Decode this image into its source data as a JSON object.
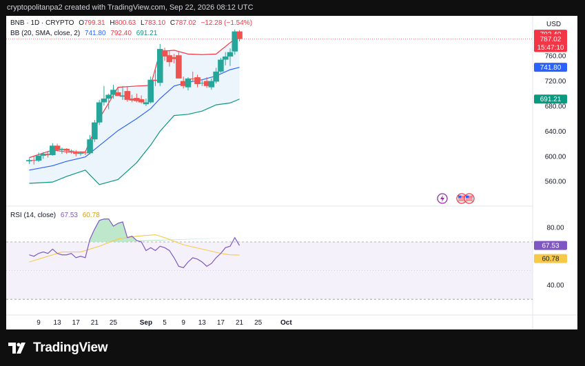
{
  "header": "cryptopolitanpa2 created with TradingView.com, Sep 22, 2026 08:12 UTC",
  "currency": "USD",
  "legend": {
    "symbol": "BNB · 1D · CRYPTO",
    "o_label": "O",
    "o": "799.31",
    "h_label": "H",
    "h": "800.63",
    "l_label": "L",
    "l": "783.10",
    "c_label": "C",
    "c": "787.02",
    "change": "−12.28 (−1.54%)",
    "bb_label": "BB (20, SMA, close, 2)",
    "bb_basis": "741.80",
    "bb_upper": "792.40",
    "bb_lower": "691.21",
    "rsi_label": "RSI (14, close)",
    "rsi": "67.53",
    "rsi_ma": "60.78"
  },
  "price_badges": {
    "upper": "792.40",
    "last": "787.02",
    "countdown": "15:47:10",
    "basis": "741.80",
    "lower": "691.21",
    "rsi": "67.53",
    "rsi_ma": "60.78"
  },
  "brand": "TradingView",
  "colors": {
    "up": "#26a69a",
    "down": "#ef5350",
    "bb_basis": "#2962ff",
    "bb_upper": "#f23645",
    "bb_lower": "#089981",
    "bb_fill": "#eaf3fc",
    "rsi": "#7e57c2",
    "rsi_ma": "#f7c948",
    "rsi_band": "#ede7f6"
  },
  "chart_data": [
    {
      "type": "candlestick",
      "title": "BNB · 1D · CRYPTO",
      "ylabel": "USD",
      "ylim": [
        535,
        815
      ],
      "y_ticks": [
        "560.00",
        "600.00",
        "640.00",
        "680.00",
        "720.00",
        "760.00"
      ],
      "x_ticks": [
        "9",
        "13",
        "17",
        "21",
        "25",
        "Sep",
        "5",
        "9",
        "13",
        "17",
        "21",
        "25",
        "Oct"
      ],
      "x_tick_days": [
        9,
        13,
        17,
        21,
        25,
        32,
        36,
        40,
        44,
        48,
        52,
        56,
        62
      ],
      "candles": [
        {
          "d": 7,
          "o": 592,
          "h": 597,
          "l": 588,
          "c": 594
        },
        {
          "d": 8,
          "o": 594,
          "h": 600,
          "l": 587,
          "c": 593
        },
        {
          "d": 9,
          "o": 593,
          "h": 606,
          "l": 591,
          "c": 601
        },
        {
          "d": 10,
          "o": 601,
          "h": 607,
          "l": 596,
          "c": 604
        },
        {
          "d": 11,
          "o": 604,
          "h": 607,
          "l": 598,
          "c": 602
        },
        {
          "d": 12,
          "o": 602,
          "h": 621,
          "l": 601,
          "c": 617
        },
        {
          "d": 13,
          "o": 617,
          "h": 620,
          "l": 608,
          "c": 610
        },
        {
          "d": 14,
          "o": 610,
          "h": 614,
          "l": 604,
          "c": 612
        },
        {
          "d": 15,
          "o": 612,
          "h": 613,
          "l": 604,
          "c": 609
        },
        {
          "d": 16,
          "o": 609,
          "h": 611,
          "l": 604,
          "c": 609
        },
        {
          "d": 17,
          "o": 606,
          "h": 610,
          "l": 600,
          "c": 604
        },
        {
          "d": 18,
          "o": 604,
          "h": 608,
          "l": 601,
          "c": 606
        },
        {
          "d": 19,
          "o": 606,
          "h": 609,
          "l": 602,
          "c": 605
        },
        {
          "d": 20,
          "o": 605,
          "h": 634,
          "l": 603,
          "c": 627
        },
        {
          "d": 21,
          "o": 627,
          "h": 658,
          "l": 623,
          "c": 654
        },
        {
          "d": 22,
          "o": 654,
          "h": 690,
          "l": 650,
          "c": 686
        },
        {
          "d": 23,
          "o": 686,
          "h": 712,
          "l": 681,
          "c": 692
        },
        {
          "d": 24,
          "o": 692,
          "h": 700,
          "l": 675,
          "c": 698
        },
        {
          "d": 25,
          "o": 698,
          "h": 714,
          "l": 692,
          "c": 706
        },
        {
          "d": 26,
          "o": 702,
          "h": 710,
          "l": 696,
          "c": 696
        },
        {
          "d": 27,
          "o": 695,
          "h": 712,
          "l": 690,
          "c": 697
        },
        {
          "d": 28,
          "o": 704,
          "h": 711,
          "l": 687,
          "c": 690
        },
        {
          "d": 29,
          "o": 692,
          "h": 698,
          "l": 686,
          "c": 689
        },
        {
          "d": 30,
          "o": 693,
          "h": 700,
          "l": 686,
          "c": 688
        },
        {
          "d": 31,
          "o": 691,
          "h": 697,
          "l": 684,
          "c": 686
        },
        {
          "d": 32,
          "o": 683,
          "h": 692,
          "l": 680,
          "c": 686
        },
        {
          "d": 33,
          "o": 686,
          "h": 727,
          "l": 684,
          "c": 722
        },
        {
          "d": 34,
          "o": 722,
          "h": 740,
          "l": 712,
          "c": 720
        },
        {
          "d": 35,
          "o": 717,
          "h": 779,
          "l": 712,
          "c": 771
        },
        {
          "d": 36,
          "o": 769,
          "h": 773,
          "l": 752,
          "c": 759
        },
        {
          "d": 37,
          "o": 761,
          "h": 768,
          "l": 743,
          "c": 750
        },
        {
          "d": 38,
          "o": 758,
          "h": 763,
          "l": 748,
          "c": 755
        },
        {
          "d": 39,
          "o": 761,
          "h": 766,
          "l": 726,
          "c": 724
        },
        {
          "d": 40,
          "o": 720,
          "h": 727,
          "l": 708,
          "c": 712
        },
        {
          "d": 41,
          "o": 710,
          "h": 726,
          "l": 705,
          "c": 724
        },
        {
          "d": 42,
          "o": 724,
          "h": 735,
          "l": 720,
          "c": 723
        },
        {
          "d": 43,
          "o": 726,
          "h": 730,
          "l": 710,
          "c": 715
        },
        {
          "d": 44,
          "o": 716,
          "h": 721,
          "l": 712,
          "c": 717
        },
        {
          "d": 45,
          "o": 720,
          "h": 726,
          "l": 709,
          "c": 712
        },
        {
          "d": 46,
          "o": 710,
          "h": 724,
          "l": 706,
          "c": 720
        },
        {
          "d": 47,
          "o": 719,
          "h": 741,
          "l": 716,
          "c": 735
        },
        {
          "d": 48,
          "o": 735,
          "h": 757,
          "l": 733,
          "c": 754
        },
        {
          "d": 49,
          "o": 754,
          "h": 766,
          "l": 745,
          "c": 759
        },
        {
          "d": 50,
          "o": 759,
          "h": 772,
          "l": 744,
          "c": 766
        },
        {
          "d": 51,
          "o": 767,
          "h": 802,
          "l": 762,
          "c": 799
        },
        {
          "d": 52,
          "o": 799,
          "h": 801,
          "l": 783,
          "c": 787
        }
      ],
      "bollinger": {
        "days": [
          7,
          12,
          15,
          19,
          22,
          26,
          30,
          33,
          35,
          38,
          41,
          44,
          47,
          50,
          52
        ],
        "upper": [
          598,
          610,
          607,
          607,
          660,
          710,
          712,
          713,
          767,
          769,
          763,
          762,
          763,
          781,
          792.4
        ],
        "basis": [
          578,
          585,
          592,
          599,
          617,
          641,
          660,
          676,
          692,
          712,
          718,
          722,
          728,
          738,
          741.8
        ],
        "lower": [
          557,
          559,
          568,
          578,
          555,
          563,
          590,
          618,
          640,
          665,
          667,
          672,
          682,
          685,
          691.2
        ]
      }
    },
    {
      "type": "line",
      "title": "RSI (14, close)",
      "ylim": [
        20,
        95
      ],
      "y_ticks": [
        "40.00",
        "80.00"
      ],
      "levels": [
        70,
        30
      ],
      "series": [
        {
          "name": "RSI",
          "days": [
            7,
            8,
            9,
            10,
            11,
            12,
            13,
            14,
            15,
            16,
            17,
            18,
            19,
            20,
            21,
            22,
            23,
            24,
            25,
            26,
            27,
            28,
            29,
            30,
            31,
            32,
            33,
            34,
            35,
            36,
            37,
            38,
            39,
            40,
            41,
            42,
            43,
            44,
            45,
            46,
            47,
            48,
            49,
            50,
            51,
            52
          ],
          "values": [
            61,
            60,
            62,
            63,
            62,
            65,
            62,
            61,
            61,
            62,
            59,
            60,
            59,
            72,
            79,
            85,
            86,
            86,
            81,
            83,
            84,
            73,
            74,
            71,
            70,
            64,
            66,
            64,
            67,
            66,
            64,
            59,
            53,
            52,
            56,
            59,
            58,
            56,
            53,
            55,
            59,
            62,
            66,
            67,
            73,
            67.53
          ]
        },
        {
          "name": "RSI-based MA",
          "days": [
            7,
            10,
            14,
            18,
            22,
            26,
            30,
            34,
            36,
            40,
            44,
            48,
            50,
            52
          ],
          "values": [
            56,
            59,
            63,
            63,
            67,
            72,
            74,
            75,
            73,
            68,
            65,
            62,
            61,
            60.78
          ]
        }
      ]
    }
  ]
}
